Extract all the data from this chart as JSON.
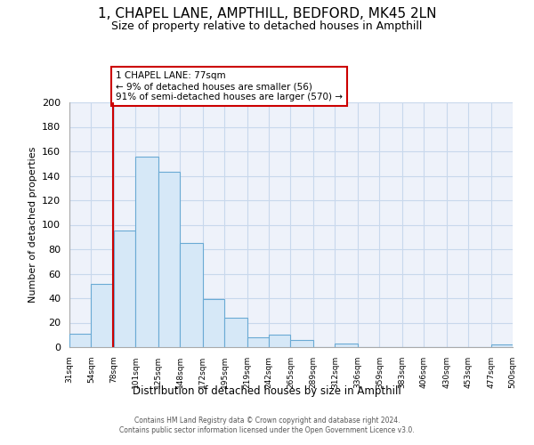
{
  "title": "1, CHAPEL LANE, AMPTHILL, BEDFORD, MK45 2LN",
  "subtitle": "Size of property relative to detached houses in Ampthill",
  "xlabel": "Distribution of detached houses by size in Ampthill",
  "ylabel": "Number of detached properties",
  "footer_line1": "Contains HM Land Registry data © Crown copyright and database right 2024.",
  "footer_line2": "Contains public sector information licensed under the Open Government Licence v3.0.",
  "bin_edges": [
    31,
    54,
    78,
    101,
    125,
    148,
    172,
    195,
    219,
    242,
    265,
    289,
    312,
    336,
    359,
    383,
    406,
    430,
    453,
    477,
    500
  ],
  "bar_heights": [
    11,
    52,
    95,
    156,
    143,
    85,
    39,
    24,
    8,
    10,
    6,
    0,
    3,
    0,
    0,
    0,
    0,
    0,
    0,
    2
  ],
  "bar_face_color": "#d6e8f7",
  "bar_edge_color": "#6aaad4",
  "vline_x": 77,
  "vline_color": "#cc0000",
  "annotation_text": "1 CHAPEL LANE: 77sqm\n← 9% of detached houses are smaller (56)\n91% of semi-detached houses are larger (570) →",
  "annotation_box_color": "#cc0000",
  "annotation_box_facecolor": "white",
  "ylim": [
    0,
    200
  ],
  "yticks": [
    0,
    20,
    40,
    60,
    80,
    100,
    120,
    140,
    160,
    180,
    200
  ],
  "xtick_labels": [
    "31sqm",
    "54sqm",
    "78sqm",
    "101sqm",
    "125sqm",
    "148sqm",
    "172sqm",
    "195sqm",
    "219sqm",
    "242sqm",
    "265sqm",
    "289sqm",
    "312sqm",
    "336sqm",
    "359sqm",
    "383sqm",
    "406sqm",
    "430sqm",
    "453sqm",
    "477sqm",
    "500sqm"
  ],
  "grid_color": "#c8d8ec",
  "background_color": "#eef2fa",
  "title_fontsize": 11,
  "subtitle_fontsize": 9
}
